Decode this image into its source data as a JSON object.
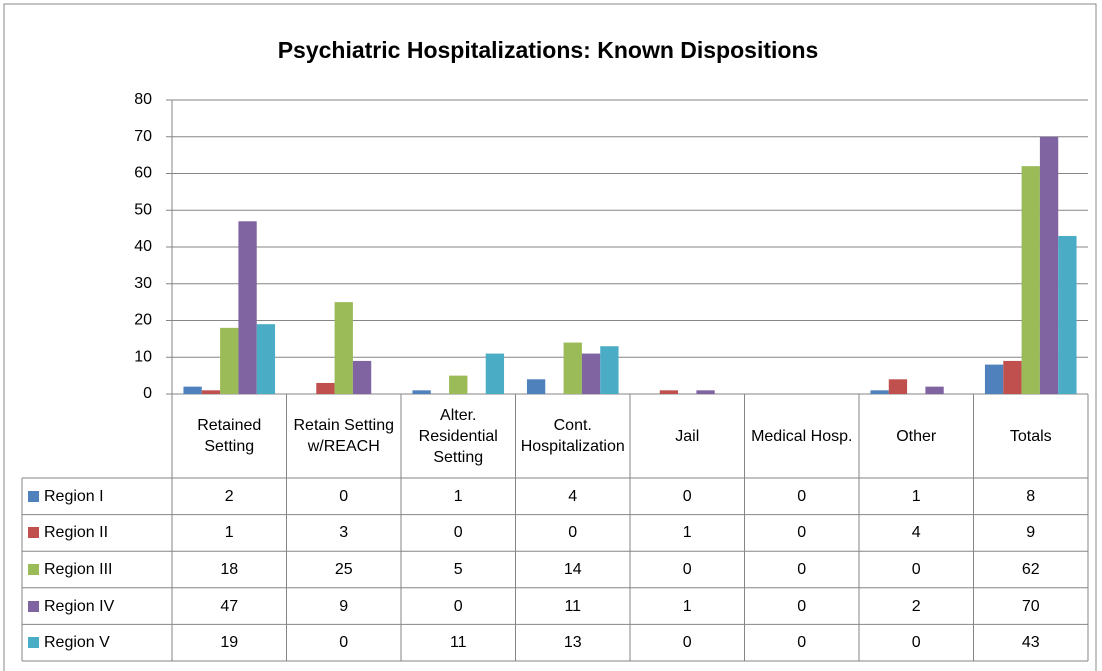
{
  "chart_data": {
    "type": "bar",
    "title": "Psychiatric Hospitalizations: Known Dispositions",
    "categories": [
      "Retained Setting",
      "Retain Setting w/REACH",
      "Alter. Residential Setting",
      "Cont. Hospitalization",
      "Jail",
      "Medical Hosp.",
      "Other",
      "Totals"
    ],
    "series": [
      {
        "name": "Region I",
        "color": "#4f81bd",
        "values": [
          2,
          0,
          1,
          4,
          0,
          0,
          1,
          8
        ]
      },
      {
        "name": "Region II",
        "color": "#c0504d",
        "values": [
          1,
          3,
          0,
          0,
          1,
          0,
          4,
          9
        ]
      },
      {
        "name": "Region III",
        "color": "#9bbb59",
        "values": [
          18,
          25,
          5,
          14,
          0,
          0,
          0,
          62
        ]
      },
      {
        "name": "Region IV",
        "color": "#8064a2",
        "values": [
          47,
          9,
          0,
          11,
          1,
          0,
          2,
          70
        ]
      },
      {
        "name": "Region V",
        "color": "#4bacc6",
        "values": [
          19,
          0,
          11,
          13,
          0,
          0,
          0,
          43
        ]
      }
    ],
    "ylim": [
      0,
      80
    ],
    "yticks": [
      0,
      10,
      20,
      30,
      40,
      50,
      60,
      70,
      80
    ],
    "grid": true,
    "data_table": true
  }
}
